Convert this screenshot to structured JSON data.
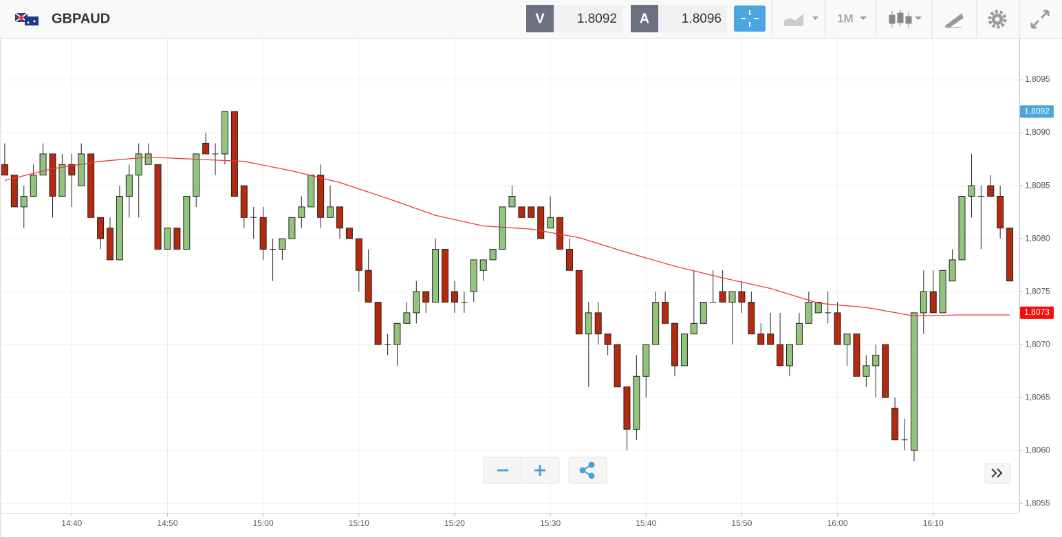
{
  "header": {
    "symbol": "GBPAUD",
    "sell": {
      "label": "V",
      "value": 1.8092
    },
    "buy": {
      "label": "A",
      "value": 1.8096
    },
    "timeframe": "1M"
  },
  "chart_data": {
    "type": "candlestick",
    "grid": true,
    "up_color": "#92c47d",
    "down_color": "#b52a0f",
    "x": [
      "14:33",
      "14:34",
      "14:35",
      "14:36",
      "14:37",
      "14:38",
      "14:39",
      "14:40",
      "14:41",
      "14:42",
      "14:43",
      "14:44",
      "14:45",
      "14:46",
      "14:47",
      "14:48",
      "14:49",
      "14:50",
      "14:51",
      "14:52",
      "14:53",
      "14:54",
      "14:55",
      "14:56",
      "14:57",
      "14:58",
      "14:59",
      "15:00",
      "15:01",
      "15:02",
      "15:03",
      "15:04",
      "15:05",
      "15:06",
      "15:07",
      "15:08",
      "15:09",
      "15:10",
      "15:11",
      "15:12",
      "15:13",
      "15:14",
      "15:15",
      "15:16",
      "15:17",
      "15:18",
      "15:19",
      "15:20",
      "15:21",
      "15:22",
      "15:23",
      "15:24",
      "15:25",
      "15:26",
      "15:27",
      "15:28",
      "15:29",
      "15:30",
      "15:31",
      "15:32",
      "15:33",
      "15:34",
      "15:35",
      "15:36",
      "15:37",
      "15:38",
      "15:39",
      "15:40",
      "15:41",
      "15:42",
      "15:43",
      "15:44",
      "15:45",
      "15:46",
      "15:47",
      "15:48",
      "15:49",
      "15:50",
      "15:51",
      "15:52",
      "15:53",
      "15:54",
      "15:55",
      "15:56",
      "15:57",
      "15:58",
      "15:59",
      "16:00",
      "16:01",
      "16:02",
      "16:03",
      "16:04",
      "16:05",
      "16:06",
      "16:07",
      "16:08",
      "16:09",
      "16:10",
      "16:11",
      "16:12",
      "16:13",
      "16:14",
      "16:15",
      "16:16",
      "16:17",
      "16:18"
    ],
    "open": [
      1.8087,
      1.8086,
      1.8083,
      1.8084,
      1.8086,
      1.8088,
      1.8084,
      1.8087,
      1.8085,
      1.8088,
      1.8082,
      1.8081,
      1.8078,
      1.8084,
      1.8086,
      1.8087,
      1.8087,
      1.8079,
      1.8081,
      1.8079,
      1.8084,
      1.8089,
      1.8088,
      1.8088,
      1.8092,
      1.8085,
      1.8082,
      1.8082,
      1.8079,
      1.8079,
      1.808,
      1.8082,
      1.8083,
      1.8086,
      1.8082,
      1.8083,
      1.8081,
      1.808,
      1.8077,
      1.8074,
      1.807,
      1.807,
      1.8072,
      1.8073,
      1.8075,
      1.8074,
      1.8079,
      1.8075,
      1.8074,
      1.8075,
      1.8077,
      1.8078,
      1.8079,
      1.8083,
      1.8083,
      1.8083,
      1.8083,
      1.8081,
      1.8082,
      1.8079,
      1.8077,
      1.8071,
      1.8073,
      1.8071,
      1.807,
      1.8066,
      1.8062,
      1.8067,
      1.807,
      1.8074,
      1.8072,
      1.8068,
      1.8071,
      1.8072,
      1.8074,
      1.8075,
      1.8074,
      1.8075,
      1.8074,
      1.8071,
      1.8071,
      1.807,
      1.8068,
      1.807,
      1.8072,
      1.8073,
      1.8073,
      1.8073,
      1.807,
      1.8071,
      1.8067,
      1.8068,
      1.807,
      1.8064,
      1.8061,
      1.806,
      1.8073,
      1.8075,
      1.8073,
      1.8076,
      1.8078,
      1.8084,
      1.8084,
      1.8085,
      1.8084,
      1.8081
    ],
    "high": [
      1.8089,
      1.8086,
      1.8085,
      1.8087,
      1.8089,
      1.8088,
      1.8088,
      1.8088,
      1.8089,
      1.8088,
      1.8082,
      1.8082,
      1.8085,
      1.8087,
      1.8089,
      1.8089,
      1.8087,
      1.8081,
      1.8081,
      1.8084,
      1.8088,
      1.809,
      1.8089,
      1.8092,
      1.8092,
      1.8085,
      1.8083,
      1.8083,
      1.808,
      1.808,
      1.8082,
      1.8084,
      1.8086,
      1.8087,
      1.8085,
      1.8083,
      1.8081,
      1.808,
      1.8079,
      1.8074,
      1.8071,
      1.8072,
      1.8074,
      1.8076,
      1.8075,
      1.808,
      1.8079,
      1.8076,
      1.8075,
      1.8078,
      1.8078,
      1.8079,
      1.8083,
      1.8085,
      1.8083,
      1.8083,
      1.8083,
      1.8084,
      1.8082,
      1.808,
      1.8077,
      1.8074,
      1.8074,
      1.8071,
      1.807,
      1.8066,
      1.8069,
      1.807,
      1.8075,
      1.8075,
      1.8072,
      1.8071,
      1.8077,
      1.8074,
      1.8077,
      1.8077,
      1.8075,
      1.8076,
      1.8075,
      1.8072,
      1.8073,
      1.8073,
      1.807,
      1.8073,
      1.8075,
      1.8074,
      1.8075,
      1.8074,
      1.8071,
      1.8071,
      1.8069,
      1.807,
      1.807,
      1.8065,
      1.8063,
      1.8073,
      1.8077,
      1.8077,
      1.8077,
      1.8079,
      1.8084,
      1.8088,
      1.8085,
      1.8086,
      1.8085,
      1.8081
    ],
    "low": [
      1.8086,
      1.8083,
      1.8081,
      1.8084,
      1.8086,
      1.8082,
      1.8084,
      1.8083,
      1.8085,
      1.8082,
      1.8079,
      1.8078,
      1.8078,
      1.8082,
      1.8082,
      1.8087,
      1.8079,
      1.8079,
      1.8079,
      1.8079,
      1.8083,
      1.8088,
      1.8086,
      1.8087,
      1.8084,
      1.8081,
      1.808,
      1.8078,
      1.8076,
      1.8078,
      1.808,
      1.8081,
      1.8083,
      1.8081,
      1.8082,
      1.808,
      1.808,
      1.8075,
      1.8074,
      1.807,
      1.8069,
      1.8068,
      1.8072,
      1.8072,
      1.8073,
      1.8074,
      1.8074,
      1.8073,
      1.8073,
      1.8074,
      1.8076,
      1.8078,
      1.8079,
      1.8083,
      1.8082,
      1.8082,
      1.808,
      1.8081,
      1.8079,
      1.8077,
      1.8071,
      1.8066,
      1.807,
      1.8069,
      1.8066,
      1.806,
      1.8061,
      1.8065,
      1.807,
      1.8072,
      1.8067,
      1.8068,
      1.8071,
      1.8072,
      1.8074,
      1.8074,
      1.807,
      1.8073,
      1.8071,
      1.807,
      1.807,
      1.8068,
      1.8067,
      1.807,
      1.8072,
      1.8073,
      1.8072,
      1.807,
      1.8068,
      1.8067,
      1.8066,
      1.8065,
      1.8065,
      1.8061,
      1.806,
      1.8059,
      1.8071,
      1.8073,
      1.8073,
      1.8076,
      1.8078,
      1.8082,
      1.8079,
      1.8084,
      1.808,
      1.8076
    ],
    "close": [
      1.8086,
      1.8083,
      1.8084,
      1.8086,
      1.8088,
      1.8084,
      1.8087,
      1.8086,
      1.8088,
      1.8082,
      1.808,
      1.8078,
      1.8084,
      1.8086,
      1.8088,
      1.8088,
      1.8079,
      1.8081,
      1.8079,
      1.8084,
      1.8088,
      1.8088,
      1.8088,
      1.8092,
      1.8084,
      1.8082,
      1.8082,
      1.8079,
      1.8079,
      1.808,
      1.8082,
      1.8083,
      1.8086,
      1.8082,
      1.8083,
      1.8081,
      1.808,
      1.8077,
      1.8074,
      1.807,
      1.807,
      1.8072,
      1.8073,
      1.8075,
      1.8074,
      1.8079,
      1.8074,
      1.8074,
      1.8074,
      1.8078,
      1.8078,
      1.8079,
      1.8083,
      1.8084,
      1.8082,
      1.8082,
      1.808,
      1.8082,
      1.8079,
      1.8077,
      1.8071,
      1.8073,
      1.8071,
      1.807,
      1.8066,
      1.8062,
      1.8067,
      1.807,
      1.8074,
      1.8072,
      1.8068,
      1.8071,
      1.8072,
      1.8074,
      1.8074,
      1.8074,
      1.8075,
      1.8074,
      1.8071,
      1.807,
      1.807,
      1.8068,
      1.807,
      1.8072,
      1.8074,
      1.8074,
      1.8073,
      1.807,
      1.8071,
      1.8067,
      1.8068,
      1.8069,
      1.8065,
      1.8061,
      1.8061,
      1.8073,
      1.8075,
      1.8073,
      1.8077,
      1.8078,
      1.8084,
      1.8085,
      1.8084,
      1.8084,
      1.8081,
      1.8076
    ],
    "moving_average": {
      "color": "#ee3a3a",
      "x": [
        "14:33",
        "14:38",
        "14:43",
        "14:48",
        "14:53",
        "14:58",
        "15:03",
        "15:08",
        "15:13",
        "15:18",
        "15:23",
        "15:28",
        "15:33",
        "15:38",
        "15:43",
        "15:48",
        "15:53",
        "15:58",
        "16:03",
        "16:08",
        "16:13",
        "16:18"
      ],
      "values": [
        1.80855,
        1.80866,
        1.80873,
        1.80877,
        1.80875,
        1.80873,
        1.80864,
        1.80853,
        1.80838,
        1.80822,
        1.80812,
        1.80809,
        1.80801,
        1.80787,
        1.80774,
        1.80763,
        1.80753,
        1.80739,
        1.80735,
        1.80727,
        1.80728,
        1.80728
      ]
    },
    "price_labels": [
      {
        "value": 1.8092,
        "label": "1,8092",
        "color": "#4aa6dc"
      },
      {
        "value": 1.8073,
        "label": "1,8073",
        "color": "#ff0a0a"
      }
    ],
    "xlim": [
      "14:32",
      "16:19"
    ],
    "xticks": [
      "14:40",
      "14:50",
      "15:00",
      "15:10",
      "15:20",
      "15:30",
      "15:40",
      "15:50",
      "16:00",
      "16:10"
    ],
    "ylim": [
      1.80541,
      1.80989
    ],
    "yticks": [
      {
        "value": 1.8055,
        "label": "1,8055"
      },
      {
        "value": 1.806,
        "label": "1,8060"
      },
      {
        "value": 1.8065,
        "label": "1,8065"
      },
      {
        "value": 1.807,
        "label": "1,8070"
      },
      {
        "value": 1.8075,
        "label": "1,8075"
      },
      {
        "value": 1.808,
        "label": "1,8080"
      },
      {
        "value": 1.8085,
        "label": "1,8085"
      },
      {
        "value": 1.809,
        "label": "1,8090"
      },
      {
        "value": 1.8095,
        "label": "1,8095"
      }
    ]
  }
}
